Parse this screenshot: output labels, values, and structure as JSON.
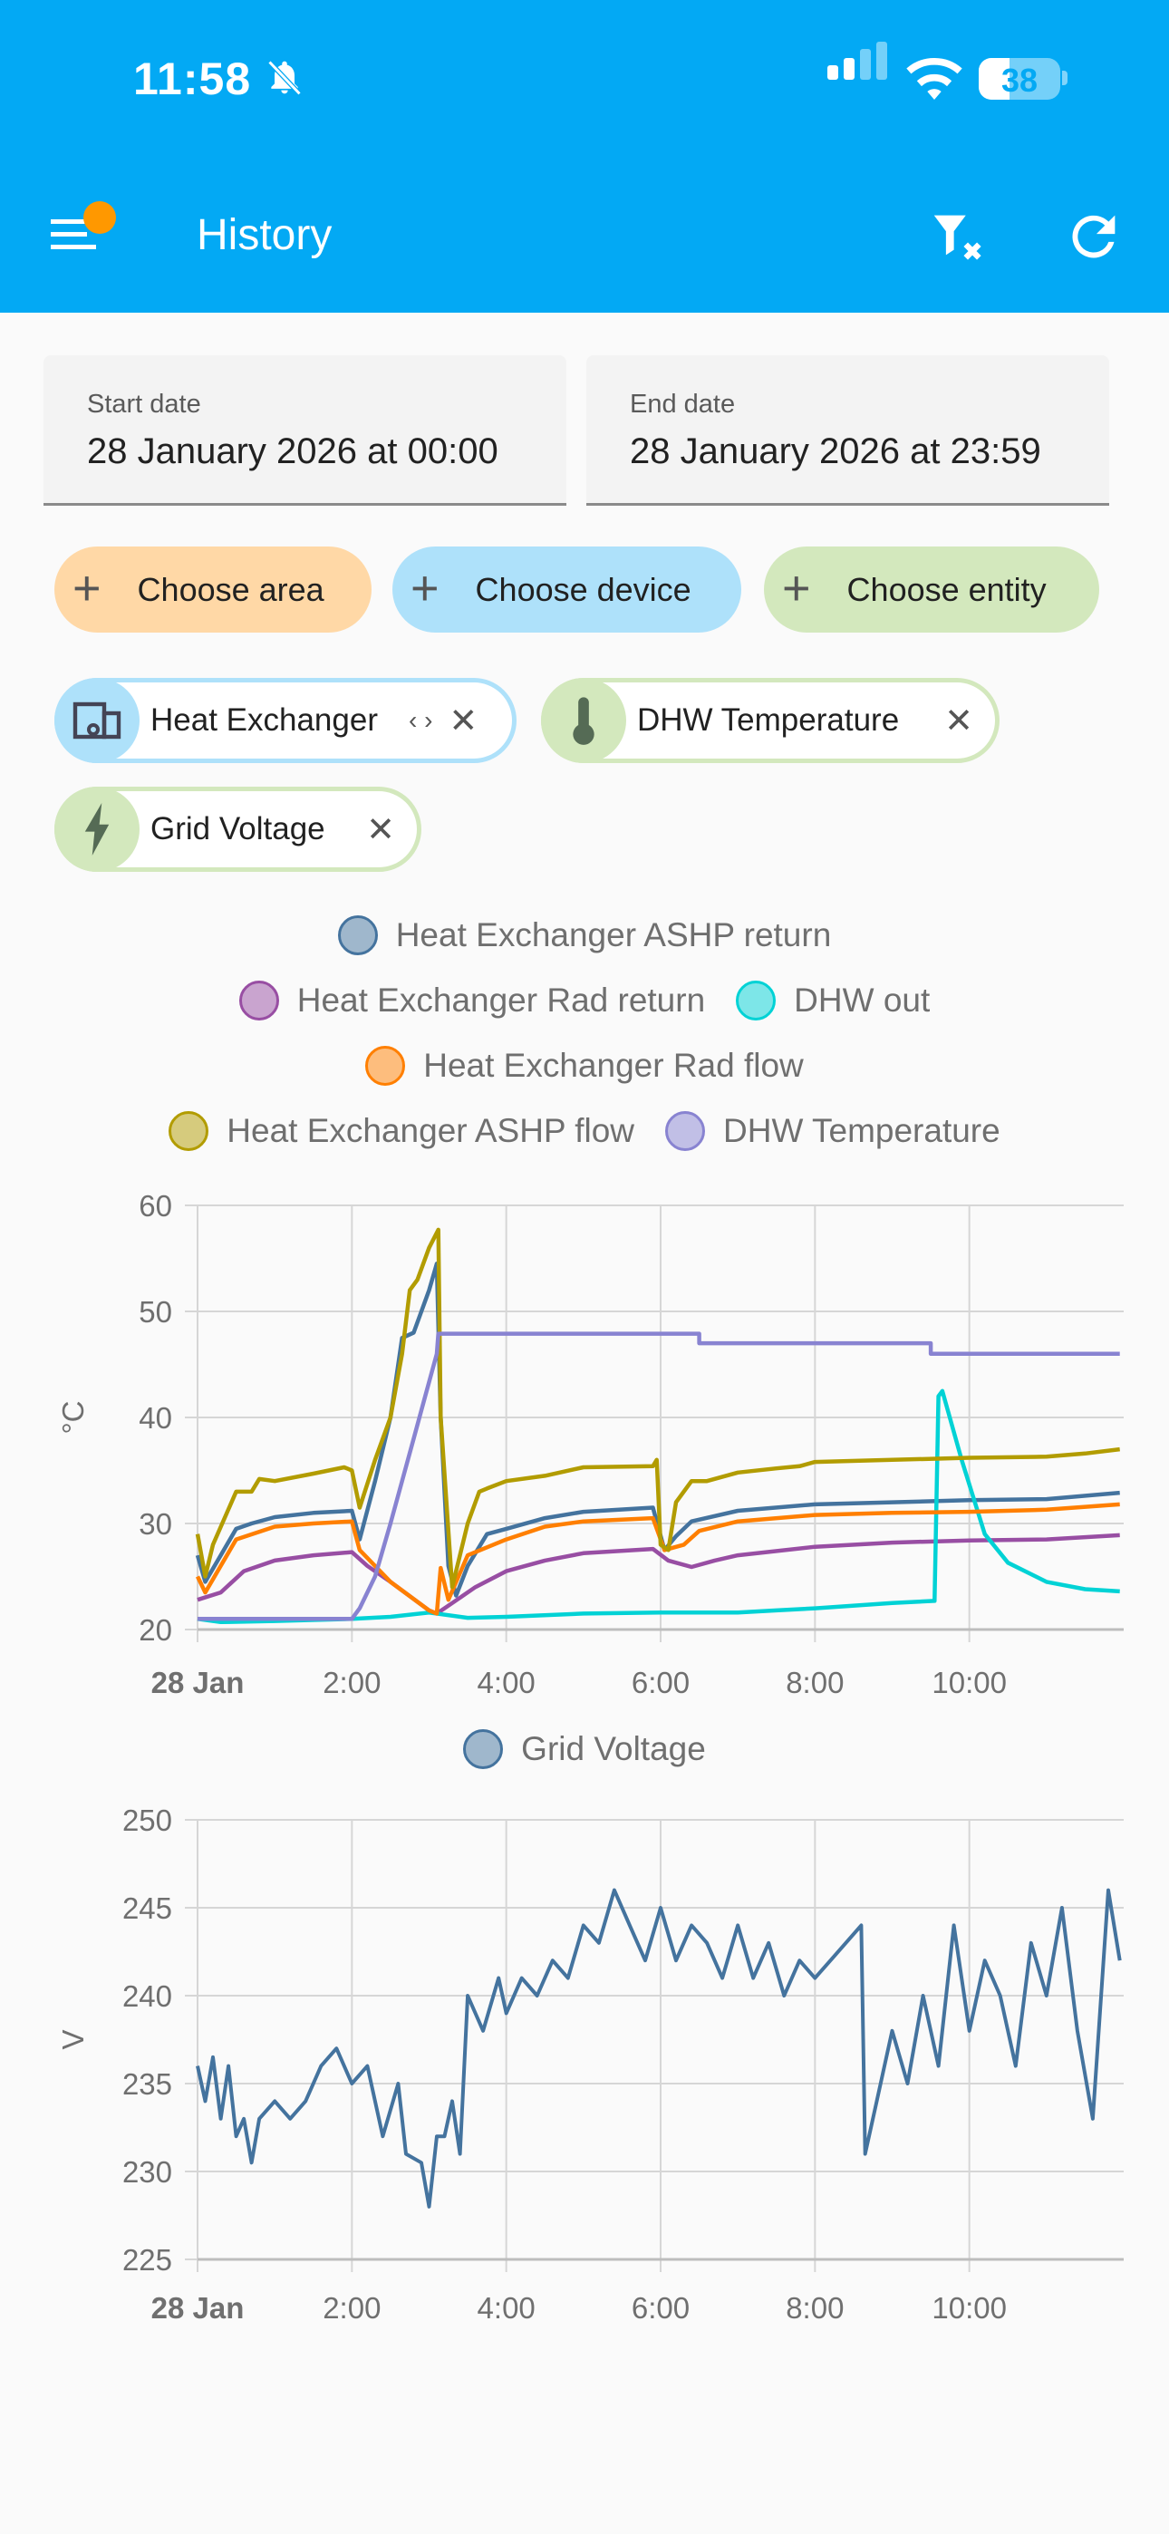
{
  "status_bar": {
    "time": "11:58",
    "battery": "38"
  },
  "header": {
    "title": "History",
    "icons": [
      "menu-icon",
      "filter-remove-icon",
      "refresh-icon"
    ]
  },
  "dates": {
    "start_label": "Start date",
    "start_value": "28 January 2026 at 00:00",
    "end_label": "End date",
    "end_value": "28 January 2026 at 23:59"
  },
  "pickers": [
    {
      "label": "Choose area",
      "color": "#ffd8a6"
    },
    {
      "label": "Choose device",
      "color": "#aee1fa"
    },
    {
      "label": "Choose entity",
      "color": "#d3e8bd"
    }
  ],
  "selected": [
    {
      "label": "Heat Exchanger",
      "type": "device"
    },
    {
      "label": "DHW Temperature",
      "type": "entity"
    },
    {
      "label": "Grid Voltage",
      "type": "entity"
    }
  ],
  "chart_data": [
    {
      "type": "line",
      "ylabel": "°C",
      "ylim": [
        20,
        60
      ],
      "yticks": [
        "20",
        "30",
        "40",
        "50",
        "60"
      ],
      "xlim": [
        0,
        12
      ],
      "xticks": [
        {
          "h": 0,
          "label": "28 Jan"
        },
        {
          "h": 2,
          "label": "2:00"
        },
        {
          "h": 4,
          "label": "4:00"
        },
        {
          "h": 6,
          "label": "6:00"
        },
        {
          "h": 8,
          "label": "8:00"
        },
        {
          "h": 10,
          "label": "10:00"
        }
      ],
      "legend_rows": [
        [
          0
        ],
        [
          1,
          2
        ],
        [
          3
        ],
        [
          4,
          5
        ]
      ],
      "series": [
        {
          "name": "Heat Exchanger ASHP return",
          "color": "#44739e",
          "points": [
            [
              0,
              27
            ],
            [
              0.1,
              24.5
            ],
            [
              0.3,
              27
            ],
            [
              0.5,
              29.5
            ],
            [
              0.7,
              30
            ],
            [
              1,
              30.6
            ],
            [
              1.5,
              31
            ],
            [
              2.0,
              31.2
            ],
            [
              2.1,
              28.5
            ],
            [
              2.3,
              34
            ],
            [
              2.5,
              40
            ],
            [
              2.65,
              47.5
            ],
            [
              2.8,
              48
            ],
            [
              3.0,
              52
            ],
            [
              3.1,
              54.5
            ],
            [
              3.15,
              40
            ],
            [
              3.25,
              26
            ],
            [
              3.35,
              23.2
            ],
            [
              3.5,
              26
            ],
            [
              3.75,
              29
            ],
            [
              4,
              29.5
            ],
            [
              4.5,
              30.5
            ],
            [
              5,
              31.1
            ],
            [
              5.9,
              31.5
            ],
            [
              6.05,
              27.5
            ],
            [
              6.2,
              28.8
            ],
            [
              6.4,
              30.2
            ],
            [
              7,
              31.2
            ],
            [
              8,
              31.8
            ],
            [
              9,
              32
            ],
            [
              10,
              32.2
            ],
            [
              11,
              32.3
            ],
            [
              11.95,
              32.9
            ]
          ]
        },
        {
          "name": "Heat Exchanger Rad return",
          "color": "#984ea3",
          "points": [
            [
              0,
              22.8
            ],
            [
              0.3,
              23.5
            ],
            [
              0.6,
              25.5
            ],
            [
              1,
              26.5
            ],
            [
              1.5,
              27
            ],
            [
              2.0,
              27.3
            ],
            [
              2.2,
              26
            ],
            [
              2.5,
              24.5
            ],
            [
              3.0,
              21.8
            ],
            [
              3.1,
              21.5
            ],
            [
              3.3,
              22.5
            ],
            [
              3.6,
              24
            ],
            [
              4,
              25.5
            ],
            [
              4.5,
              26.5
            ],
            [
              5,
              27.2
            ],
            [
              5.9,
              27.6
            ],
            [
              6.1,
              26.5
            ],
            [
              6.4,
              25.9
            ],
            [
              6.7,
              26.5
            ],
            [
              7,
              27
            ],
            [
              8,
              27.8
            ],
            [
              9,
              28.2
            ],
            [
              10,
              28.4
            ],
            [
              11,
              28.5
            ],
            [
              11.95,
              28.9
            ]
          ]
        },
        {
          "name": "DHW out",
          "color": "#00d2d5",
          "points": [
            [
              0,
              21
            ],
            [
              0.3,
              20.7
            ],
            [
              1,
              20.8
            ],
            [
              2,
              21
            ],
            [
              2.5,
              21.2
            ],
            [
              3,
              21.6
            ],
            [
              3.5,
              21.1
            ],
            [
              4,
              21.2
            ],
            [
              5,
              21.5
            ],
            [
              6,
              21.6
            ],
            [
              7,
              21.6
            ],
            [
              7.5,
              21.8
            ],
            [
              8,
              22
            ],
            [
              9,
              22.5
            ],
            [
              9.55,
              22.7
            ],
            [
              9.6,
              42
            ],
            [
              9.65,
              42.5
            ],
            [
              9.9,
              36
            ],
            [
              10.2,
              29
            ],
            [
              10.5,
              26.3
            ],
            [
              11,
              24.5
            ],
            [
              11.5,
              23.8
            ],
            [
              11.95,
              23.6
            ]
          ]
        },
        {
          "name": "Heat Exchanger Rad flow",
          "color": "#ff7f00",
          "points": [
            [
              0,
              25
            ],
            [
              0.1,
              23.5
            ],
            [
              0.3,
              26
            ],
            [
              0.5,
              28.5
            ],
            [
              1,
              29.7
            ],
            [
              1.5,
              30
            ],
            [
              2.0,
              30.2
            ],
            [
              2.1,
              27.5
            ],
            [
              2.5,
              24.5
            ],
            [
              3.0,
              21.8
            ],
            [
              3.1,
              21.5
            ],
            [
              3.15,
              25.8
            ],
            [
              3.25,
              22.8
            ],
            [
              3.5,
              27
            ],
            [
              4,
              28.5
            ],
            [
              4.5,
              29.7
            ],
            [
              5,
              30.2
            ],
            [
              5.9,
              30.5
            ],
            [
              6.05,
              27.5
            ],
            [
              6.3,
              28
            ],
            [
              6.5,
              29.3
            ],
            [
              7,
              30.2
            ],
            [
              8,
              30.8
            ],
            [
              9,
              31
            ],
            [
              10,
              31.1
            ],
            [
              11,
              31.3
            ],
            [
              11.95,
              31.8
            ]
          ]
        },
        {
          "name": "Heat Exchanger ASHP flow",
          "color": "#b29c00",
          "points": [
            [
              0,
              29
            ],
            [
              0.1,
              25
            ],
            [
              0.2,
              28
            ],
            [
              0.5,
              33
            ],
            [
              0.7,
              33
            ],
            [
              0.8,
              34.2
            ],
            [
              1,
              34
            ],
            [
              1.5,
              34.7
            ],
            [
              1.9,
              35.3
            ],
            [
              2.0,
              35
            ],
            [
              2.1,
              31.5
            ],
            [
              2.3,
              36
            ],
            [
              2.5,
              40
            ],
            [
              2.65,
              46
            ],
            [
              2.75,
              52
            ],
            [
              2.85,
              53
            ],
            [
              3.0,
              56
            ],
            [
              3.12,
              57.7
            ],
            [
              3.15,
              40
            ],
            [
              3.3,
              24
            ],
            [
              3.5,
              30
            ],
            [
              3.65,
              33
            ],
            [
              3.75,
              33.3
            ],
            [
              4,
              34
            ],
            [
              4.5,
              34.5
            ],
            [
              5,
              35.3
            ],
            [
              5.9,
              35.4
            ],
            [
              5.95,
              36
            ],
            [
              6.0,
              28
            ],
            [
              6.1,
              27.5
            ],
            [
              6.2,
              32
            ],
            [
              6.4,
              34
            ],
            [
              6.6,
              34
            ],
            [
              7,
              34.8
            ],
            [
              7.5,
              35.2
            ],
            [
              7.8,
              35.4
            ],
            [
              8,
              35.8
            ],
            [
              9,
              36
            ],
            [
              10,
              36.2
            ],
            [
              11,
              36.3
            ],
            [
              11.5,
              36.6
            ],
            [
              11.95,
              37
            ]
          ]
        },
        {
          "name": "DHW Temperature",
          "color": "#8883d1",
          "points": [
            [
              0,
              21
            ],
            [
              2.0,
              21
            ],
            [
              2.1,
              22
            ],
            [
              2.3,
              25
            ],
            [
              2.5,
              30
            ],
            [
              2.65,
              34
            ],
            [
              2.8,
              38
            ],
            [
              2.95,
              42
            ],
            [
              3.1,
              46
            ],
            [
              3.12,
              47.9
            ],
            [
              6.5,
              47.9
            ],
            [
              6.5,
              47
            ],
            [
              9.5,
              47
            ],
            [
              9.5,
              46
            ],
            [
              11.95,
              46
            ]
          ]
        }
      ]
    },
    {
      "type": "line",
      "ylabel": "V",
      "ylim": [
        225,
        250
      ],
      "yticks": [
        "225",
        "230",
        "235",
        "240",
        "245",
        "250"
      ],
      "xlim": [
        0,
        12
      ],
      "xticks": [
        {
          "h": 0,
          "label": "28 Jan"
        },
        {
          "h": 2,
          "label": "2:00"
        },
        {
          "h": 4,
          "label": "4:00"
        },
        {
          "h": 6,
          "label": "6:00"
        },
        {
          "h": 8,
          "label": "8:00"
        },
        {
          "h": 10,
          "label": "10:00"
        }
      ],
      "legend_rows": [
        [
          0
        ]
      ],
      "series": [
        {
          "name": "Grid Voltage",
          "color": "#44739e",
          "points": [
            [
              0,
              236
            ],
            [
              0.1,
              234
            ],
            [
              0.2,
              236.5
            ],
            [
              0.3,
              233
            ],
            [
              0.4,
              236
            ],
            [
              0.5,
              232
            ],
            [
              0.6,
              233
            ],
            [
              0.7,
              230.5
            ],
            [
              0.8,
              233
            ],
            [
              1.0,
              234
            ],
            [
              1.2,
              233
            ],
            [
              1.4,
              234
            ],
            [
              1.6,
              236
            ],
            [
              1.8,
              237
            ],
            [
              2.0,
              235
            ],
            [
              2.2,
              236
            ],
            [
              2.4,
              232
            ],
            [
              2.6,
              235
            ],
            [
              2.7,
              231
            ],
            [
              2.9,
              230.5
            ],
            [
              3.0,
              228
            ],
            [
              3.1,
              232
            ],
            [
              3.2,
              232
            ],
            [
              3.3,
              234
            ],
            [
              3.4,
              231
            ],
            [
              3.5,
              240
            ],
            [
              3.7,
              238
            ],
            [
              3.9,
              241
            ],
            [
              4.0,
              239
            ],
            [
              4.2,
              241
            ],
            [
              4.4,
              240
            ],
            [
              4.6,
              242
            ],
            [
              4.8,
              241
            ],
            [
              5.0,
              244
            ],
            [
              5.2,
              243
            ],
            [
              5.4,
              246
            ],
            [
              5.6,
              244
            ],
            [
              5.8,
              242
            ],
            [
              6.0,
              245
            ],
            [
              6.2,
              242
            ],
            [
              6.4,
              244
            ],
            [
              6.6,
              243
            ],
            [
              6.8,
              241
            ],
            [
              7.0,
              244
            ],
            [
              7.2,
              241
            ],
            [
              7.4,
              243
            ],
            [
              7.6,
              240
            ],
            [
              7.8,
              242
            ],
            [
              8.0,
              241
            ],
            [
              8.2,
              242
            ],
            [
              8.4,
              243
            ],
            [
              8.6,
              244
            ],
            [
              8.65,
              231
            ],
            [
              8.8,
              234
            ],
            [
              9.0,
              238
            ],
            [
              9.2,
              235
            ],
            [
              9.4,
              240
            ],
            [
              9.6,
              236
            ],
            [
              9.8,
              244
            ],
            [
              10.0,
              238
            ],
            [
              10.2,
              242
            ],
            [
              10.4,
              240
            ],
            [
              10.6,
              236
            ],
            [
              10.8,
              243
            ],
            [
              11.0,
              240
            ],
            [
              11.2,
              245
            ],
            [
              11.4,
              238
            ],
            [
              11.6,
              233
            ],
            [
              11.8,
              246
            ],
            [
              11.95,
              242
            ]
          ]
        }
      ]
    }
  ]
}
